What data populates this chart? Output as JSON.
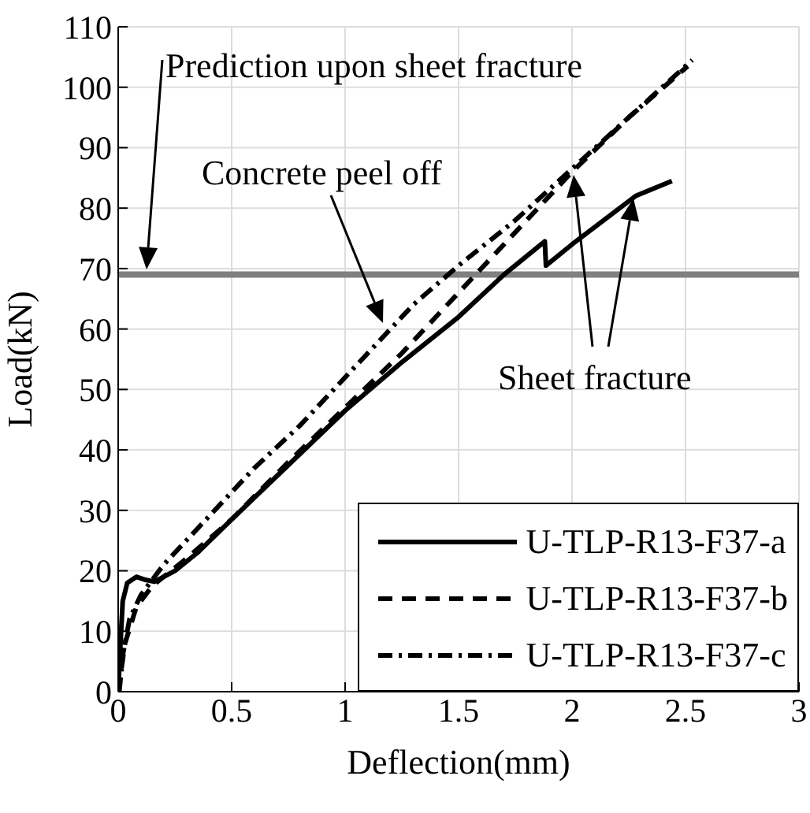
{
  "chart_data": {
    "type": "line",
    "xlabel": "Deflection(mm)",
    "ylabel": "Load(kN)",
    "xlim": [
      0,
      3
    ],
    "xticks": [
      0,
      0.5,
      1,
      1.5,
      2,
      2.5,
      3
    ],
    "ylim": [
      0,
      110
    ],
    "yticks": [
      0,
      10,
      20,
      30,
      40,
      50,
      60,
      70,
      80,
      90,
      100,
      110
    ],
    "grid": true,
    "legend": "bottom right",
    "marker": "none",
    "series": [
      {
        "name": "U-TLP-R13-F37-a",
        "color": "#000000",
        "line_style": "solid",
        "x": [
          0,
          0.01,
          0.02,
          0.04,
          0.08,
          0.12,
          0.16,
          0.25,
          0.35,
          0.5,
          0.75,
          1.0,
          1.25,
          1.5,
          1.7,
          1.88,
          1.885,
          2.0,
          2.28,
          2.44
        ],
        "values": [
          0,
          8,
          15,
          18,
          19,
          18.5,
          18.2,
          20,
          23,
          28.5,
          37.5,
          46.5,
          54.5,
          62,
          69,
          74.5,
          70.5,
          74,
          82,
          84.5
        ]
      },
      {
        "name": "U-TLP-R13-F37-b",
        "color": "#000000",
        "line_style": "dashed",
        "x": [
          0,
          0.03,
          0.08,
          0.15,
          0.3,
          0.5,
          0.75,
          1.0,
          1.25,
          1.5,
          1.75,
          2.0,
          2.25,
          2.51
        ],
        "values": [
          0,
          8,
          14,
          17.5,
          22,
          28.5,
          38,
          47,
          56,
          66,
          76,
          86,
          95,
          103.5
        ]
      },
      {
        "name": "U-TLP-R13-F37-c",
        "color": "#000000",
        "line_style": "dashdot",
        "x": [
          0.005,
          0.02,
          0.05,
          0.1,
          0.2,
          0.3,
          0.45,
          0.6,
          0.8,
          1.0,
          1.15,
          1.3,
          1.5,
          1.75,
          2.0,
          2.25,
          2.53
        ],
        "values": [
          0,
          6,
          12,
          16,
          21,
          25,
          31,
          37,
          44,
          52,
          58,
          64,
          70.5,
          78,
          86.5,
          95,
          104.5
        ]
      }
    ],
    "ref_lines": [
      {
        "axis": "y",
        "value": 69,
        "color": "#808080"
      }
    ],
    "annotations": [
      "Prediction upon sheet fracture",
      "Concrete peel off",
      "Sheet fracture"
    ]
  }
}
